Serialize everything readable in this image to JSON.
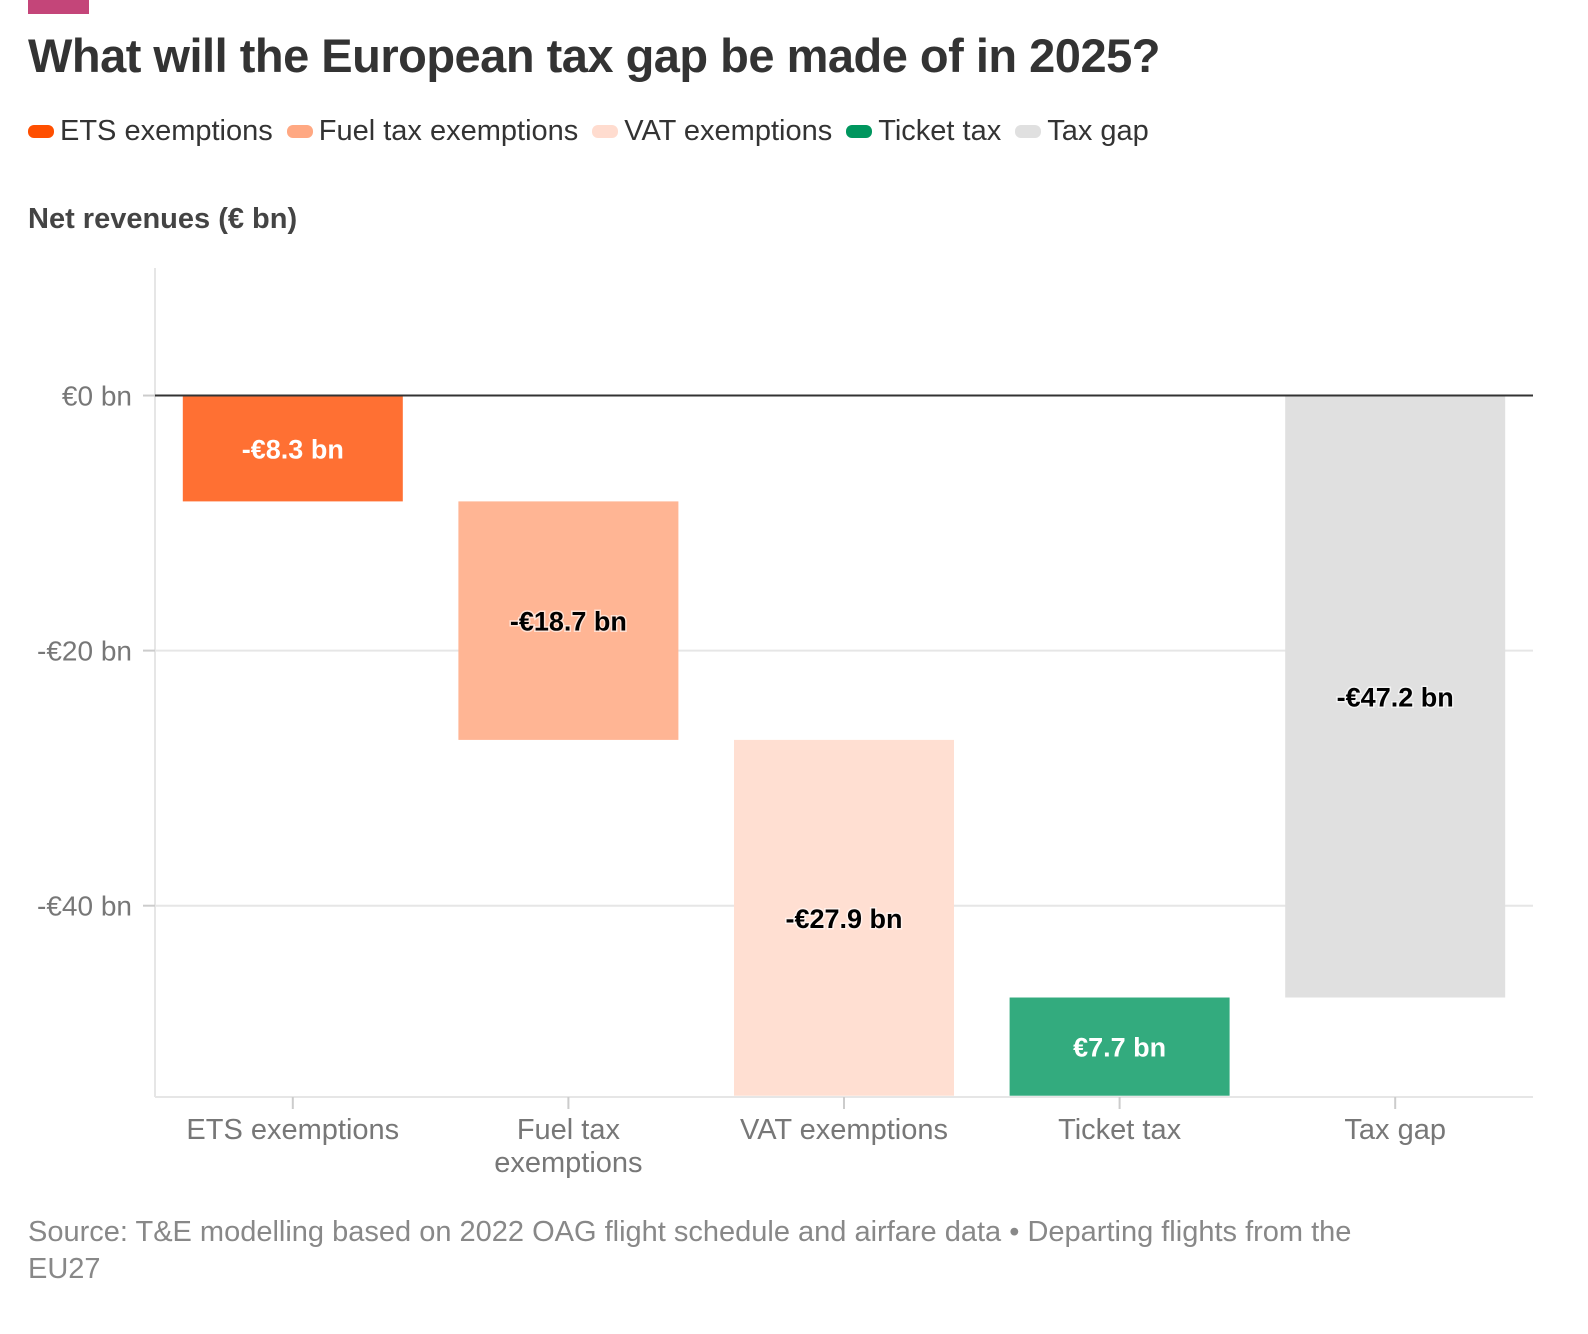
{
  "colors": {
    "accent": "#c44579",
    "ets": "#ff4f00",
    "fuel": "#ffa882",
    "vat": "#ffdccf",
    "ticket": "#00965e",
    "gap": "#e0e0e0"
  },
  "chart_data": {
    "type": "waterfall",
    "title": "What will the European tax gap be made of in 2025?",
    "ylabel": "Net revenues (€ bn)",
    "xlabel": "",
    "ylim": [
      -55,
      10
    ],
    "yticks": [
      0,
      -20,
      -40
    ],
    "ytick_labels": [
      "€0 bn",
      "-€20 bn",
      "-€40 bn"
    ],
    "grid": true,
    "legend_position": "top-left",
    "legend": [
      "ETS exemptions",
      "Fuel tax exemptions",
      "VAT exemptions",
      "Ticket tax",
      "Tax gap"
    ],
    "categories": [
      "ETS exemptions",
      "Fuel tax exemptions",
      "VAT exemptions",
      "Ticket tax",
      "Tax gap"
    ],
    "category_labels": [
      [
        "ETS exemptions"
      ],
      [
        "Fuel tax",
        "exemptions"
      ],
      [
        "VAT exemptions"
      ],
      [
        "Ticket tax"
      ],
      [
        "Tax gap"
      ]
    ],
    "values": [
      -8.3,
      -18.7,
      -27.9,
      7.7,
      -47.2
    ],
    "is_total": [
      false,
      false,
      false,
      false,
      true
    ],
    "data_labels": [
      "-€8.3 bn",
      "-€18.7 bn",
      "-€27.9 bn",
      "€7.7 bn",
      "-€47.2 bn"
    ],
    "bar_colors": [
      "#ff7033",
      "#ffb594",
      "#ffdfd2",
      "#33ab7e",
      "#e0e0e0"
    ],
    "label_colors": [
      "#ffffff",
      "#000000",
      "#000000",
      "#ffffff",
      "#000000"
    ]
  },
  "source": "Source: T&E modelling based on 2022 OAG flight schedule and airfare data • Departing flights from the EU27"
}
